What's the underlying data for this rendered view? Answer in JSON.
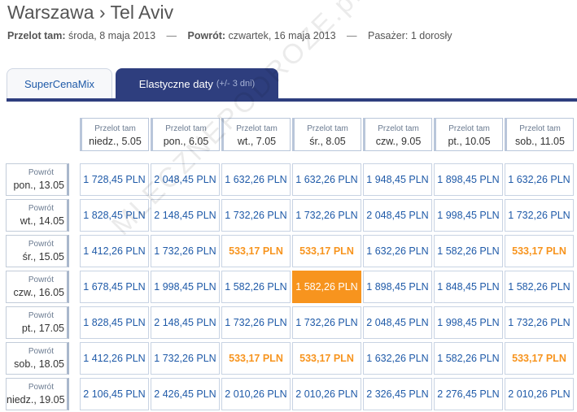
{
  "header": {
    "route": "Warszawa › Tel Aviv",
    "out_label": "Przelot tam:",
    "out_date": "środa, 8 maja 2013",
    "ret_label": "Powrót:",
    "ret_date": "czwartek, 16 maja 2013",
    "sep": "—",
    "passengers": "Pasażer: 1 dorosły"
  },
  "tabs": {
    "supercena": "SuperCenaMix",
    "flex": "Elastyczne daty",
    "flex_hint": "(+/- 3 dni)"
  },
  "watermark": "MLECZNEPODROZE.pl",
  "grid": {
    "col_label": "Przelot tam",
    "row_label": "Powrót",
    "columns": [
      "niedz., 5.05",
      "pon., 6.05",
      "wt., 7.05",
      "śr., 8.05",
      "czw., 9.05",
      "pt., 10.05",
      "sob., 11.05"
    ],
    "rows": [
      {
        "day": "pon., 13.05",
        "prices": [
          "1 728,45 PLN",
          "2 048,45 PLN",
          "1 632,26 PLN",
          "1 632,26 PLN",
          "1 948,45 PLN",
          "1 898,45 PLN",
          "1 632,26 PLN"
        ]
      },
      {
        "day": "wt., 14.05",
        "prices": [
          "1 828,45 PLN",
          "2 148,45 PLN",
          "1 732,26 PLN",
          "1 732,26 PLN",
          "2 048,45 PLN",
          "1 998,45 PLN",
          "1 732,26 PLN"
        ]
      },
      {
        "day": "śr., 15.05",
        "prices": [
          "1 412,26 PLN",
          "1 732,26 PLN",
          "533,17 PLN",
          "533,17 PLN",
          "1 632,26 PLN",
          "1 582,26 PLN",
          "533,17 PLN"
        ]
      },
      {
        "day": "czw., 16.05",
        "prices": [
          "1 678,45 PLN",
          "1 998,45 PLN",
          "1 582,26 PLN",
          "1 582,26 PLN",
          "1 898,45 PLN",
          "1 848,45 PLN",
          "1 582,26 PLN"
        ]
      },
      {
        "day": "pt., 17.05",
        "prices": [
          "1 828,45 PLN",
          "2 148,45 PLN",
          "1 732,26 PLN",
          "1 732,26 PLN",
          "2 048,45 PLN",
          "1 998,45 PLN",
          "1 732,26 PLN"
        ]
      },
      {
        "day": "sob., 18.05",
        "prices": [
          "1 412,26 PLN",
          "1 732,26 PLN",
          "533,17 PLN",
          "533,17 PLN",
          "1 632,26 PLN",
          "1 582,26 PLN",
          "533,17 PLN"
        ]
      },
      {
        "day": "niedz., 19.05",
        "prices": [
          "2 106,45 PLN",
          "2 426,45 PLN",
          "2 010,26 PLN",
          "2 010,26 PLN",
          "2 326,45 PLN",
          "2 276,45 PLN",
          "2 010,26 PLN"
        ]
      }
    ],
    "selected": {
      "row": 3,
      "col": 3
    },
    "colors": {
      "price": "#1f5aa8",
      "promo": "#f7941e",
      "selected_bg": "#f7941e",
      "active_tab": "#2e3e7e"
    }
  }
}
